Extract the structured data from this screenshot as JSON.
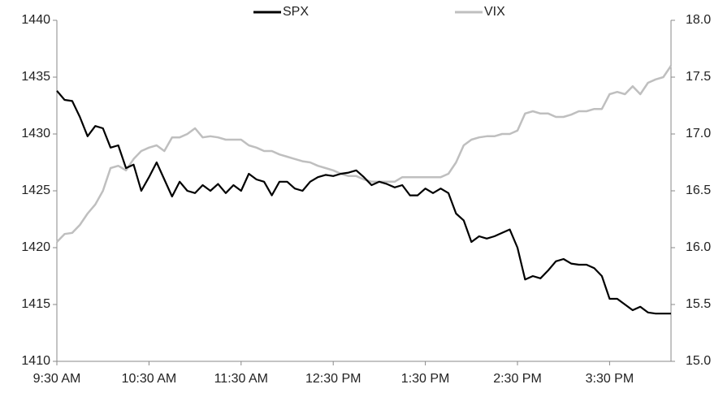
{
  "chart_data": {
    "type": "line",
    "categories": [
      "9:30 AM",
      null,
      null,
      null,
      null,
      null,
      null,
      null,
      null,
      null,
      null,
      null,
      "10:30 AM",
      null,
      null,
      null,
      null,
      null,
      null,
      null,
      null,
      null,
      null,
      null,
      "11:30 AM",
      null,
      null,
      null,
      null,
      null,
      null,
      null,
      null,
      null,
      null,
      null,
      "12:30 PM",
      null,
      null,
      null,
      null,
      null,
      null,
      null,
      null,
      null,
      null,
      null,
      "1:30 PM",
      null,
      null,
      null,
      null,
      null,
      null,
      null,
      null,
      null,
      null,
      null,
      "2:30 PM",
      null,
      null,
      null,
      null,
      null,
      null,
      null,
      null,
      null,
      null,
      null,
      "3:30 PM",
      null,
      null,
      null,
      null,
      null,
      null,
      null,
      null
    ],
    "series": [
      {
        "name": "SPX",
        "color": "#000000",
        "values": [
          1433.8,
          1433,
          1432.9,
          1431.5,
          1429.8,
          1430.7,
          1430.5,
          1428.8,
          1429,
          1427,
          1427.3,
          1425,
          1426.2,
          1427.5,
          1426,
          1424.5,
          1425.8,
          1425,
          1424.8,
          1425.5,
          1425,
          1425.6,
          1424.8,
          1425.5,
          1425,
          1426.5,
          1426,
          1425.8,
          1424.6,
          1425.8,
          1425.8,
          1425.2,
          1425,
          1425.8,
          1426.2,
          1426.4,
          1426.3,
          1426.5,
          1426.6,
          1426.8,
          1426.2,
          1425.5,
          1425.8,
          1425.6,
          1425.3,
          1425.5,
          1424.6,
          1424.6,
          1425.2,
          1424.8,
          1425.2,
          1424.8,
          1423,
          1422.4,
          1420.5,
          1421,
          1420.8,
          1421,
          1421.3,
          1421.6,
          1420,
          1417.2,
          1417.5,
          1417.3,
          1418,
          1418.8,
          1419,
          1418.6,
          1418.5,
          1418.5,
          1418.2,
          1417.5,
          1415.5,
          1415.5,
          1415,
          1414.5,
          1414.8,
          1414.3,
          1414.2,
          1414.2,
          1414.2
        ]
      },
      {
        "name": "VIX",
        "color": "#bfbfbf",
        "axis": "y2",
        "values": [
          16.05,
          16.12,
          16.13,
          16.2,
          16.3,
          16.38,
          16.5,
          16.7,
          16.72,
          16.68,
          16.78,
          16.85,
          16.88,
          16.9,
          16.85,
          16.97,
          16.97,
          17.0,
          17.05,
          16.97,
          16.98,
          16.97,
          16.95,
          16.95,
          16.95,
          16.9,
          16.88,
          16.85,
          16.85,
          16.82,
          16.8,
          16.78,
          16.76,
          16.75,
          16.72,
          16.7,
          16.68,
          16.65,
          16.63,
          16.63,
          16.6,
          16.58,
          16.58,
          16.58,
          16.58,
          16.62,
          16.62,
          16.62,
          16.62,
          16.62,
          16.62,
          16.65,
          16.75,
          16.9,
          16.95,
          16.97,
          16.98,
          16.98,
          17.0,
          17.0,
          17.03,
          17.18,
          17.2,
          17.18,
          17.18,
          17.15,
          17.15,
          17.17,
          17.2,
          17.2,
          17.22,
          17.22,
          17.35,
          17.37,
          17.35,
          17.42,
          17.35,
          17.45,
          17.48,
          17.5,
          17.6
        ]
      }
    ],
    "ylim": [
      1410,
      1440
    ],
    "yticks": [
      1410,
      1415,
      1420,
      1425,
      1430,
      1435,
      1440
    ],
    "y2lim": [
      15,
      18
    ],
    "y2ticks": [
      {
        "value": 15,
        "label": "15.0"
      },
      15.5,
      {
        "value": 16,
        "label": "16.0"
      },
      16.5,
      {
        "value": 17,
        "label": "17.0"
      },
      17.5,
      {
        "value": 18,
        "label": "18.0"
      }
    ],
    "legend": "top",
    "grid": false
  }
}
